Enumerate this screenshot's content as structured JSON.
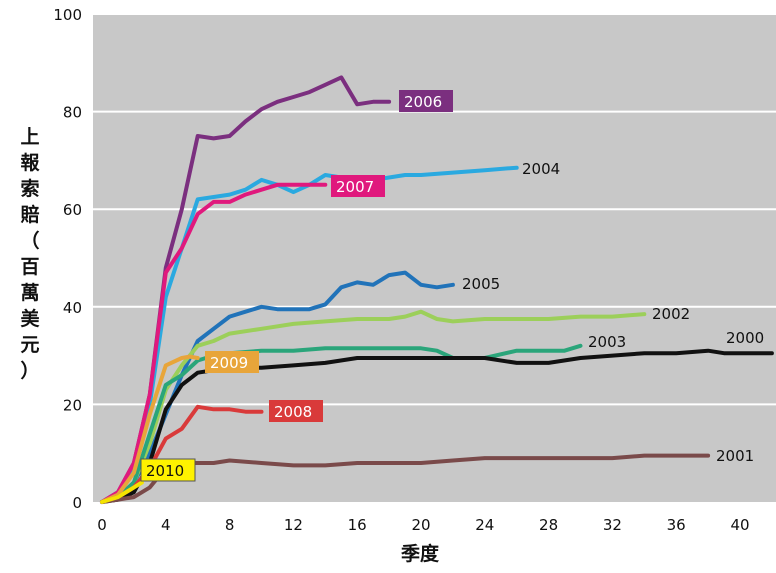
{
  "chart_data": {
    "type": "line",
    "xlabel": "季度",
    "ylabel": "上報索賠（百萬美元）",
    "xlim": [
      0,
      42
    ],
    "ylim": [
      0,
      100
    ],
    "x_ticks": [
      "0",
      "4",
      "8",
      "12",
      "16",
      "20",
      "24",
      "28",
      "32",
      "36",
      "40"
    ],
    "y_ticks": [
      "0",
      "20",
      "40",
      "60",
      "80",
      "100"
    ],
    "grid": "horizontal",
    "colors": {
      "plot_bg": "#c8c8c8",
      "grid": "#ffffff"
    },
    "series": [
      {
        "name": "2006",
        "color": "#7b2f7f",
        "label_style": "box",
        "points": [
          [
            0,
            0
          ],
          [
            1,
            2
          ],
          [
            2,
            8
          ],
          [
            3,
            22
          ],
          [
            4,
            48
          ],
          [
            5,
            60
          ],
          [
            6,
            75
          ],
          [
            7,
            74.5
          ],
          [
            8,
            75
          ],
          [
            9,
            78
          ],
          [
            10,
            80.5
          ],
          [
            11,
            82
          ],
          [
            12,
            83
          ],
          [
            13,
            84
          ],
          [
            14,
            85.5
          ],
          [
            15,
            87
          ],
          [
            16,
            81.5
          ],
          [
            17,
            82
          ],
          [
            18,
            82
          ]
        ]
      },
      {
        "name": "2004",
        "color": "#2aa9e0",
        "label_style": "plain",
        "points": [
          [
            0,
            0
          ],
          [
            1,
            2
          ],
          [
            2,
            7
          ],
          [
            3,
            20
          ],
          [
            4,
            42
          ],
          [
            5,
            52
          ],
          [
            6,
            62
          ],
          [
            7,
            62.5
          ],
          [
            8,
            63
          ],
          [
            9,
            64
          ],
          [
            10,
            66
          ],
          [
            11,
            65
          ],
          [
            12,
            63.5
          ],
          [
            13,
            65
          ],
          [
            14,
            67
          ],
          [
            15,
            66.5
          ],
          [
            16,
            66
          ],
          [
            17,
            66
          ],
          [
            18,
            66.5
          ],
          [
            19,
            67
          ],
          [
            20,
            67
          ],
          [
            22,
            67.5
          ],
          [
            24,
            68
          ],
          [
            26,
            68.5
          ]
        ]
      },
      {
        "name": "2007",
        "color": "#e0197d",
        "label_style": "box",
        "points": [
          [
            0,
            0
          ],
          [
            1,
            2
          ],
          [
            2,
            8
          ],
          [
            3,
            22
          ],
          [
            4,
            47
          ],
          [
            5,
            52
          ],
          [
            6,
            59
          ],
          [
            7,
            61.5
          ],
          [
            8,
            61.5
          ],
          [
            9,
            63
          ],
          [
            10,
            64
          ],
          [
            11,
            65
          ],
          [
            12,
            65
          ],
          [
            13,
            65
          ],
          [
            14,
            65
          ]
        ]
      },
      {
        "name": "2005",
        "color": "#2173b9",
        "label_style": "plain",
        "points": [
          [
            0,
            0
          ],
          [
            1,
            1
          ],
          [
            2,
            4
          ],
          [
            3,
            10
          ],
          [
            4,
            18
          ],
          [
            5,
            26
          ],
          [
            6,
            33
          ],
          [
            7,
            35.5
          ],
          [
            8,
            38
          ],
          [
            9,
            39
          ],
          [
            10,
            40
          ],
          [
            11,
            39.5
          ],
          [
            12,
            39.5
          ],
          [
            13,
            39.5
          ],
          [
            14,
            40.5
          ],
          [
            15,
            44
          ],
          [
            16,
            45
          ],
          [
            17,
            44.5
          ],
          [
            18,
            46.5
          ],
          [
            19,
            47
          ],
          [
            20,
            44.5
          ],
          [
            21,
            44
          ],
          [
            22,
            44.5
          ]
        ]
      },
      {
        "name": "2002",
        "color": "#9ccf5a",
        "label_style": "plain",
        "points": [
          [
            0,
            0
          ],
          [
            1,
            1
          ],
          [
            2,
            4
          ],
          [
            3,
            12
          ],
          [
            4,
            23
          ],
          [
            5,
            28
          ],
          [
            6,
            32
          ],
          [
            7,
            33
          ],
          [
            8,
            34.5
          ],
          [
            10,
            35.5
          ],
          [
            12,
            36.5
          ],
          [
            14,
            37
          ],
          [
            16,
            37.5
          ],
          [
            18,
            37.5
          ],
          [
            19,
            38
          ],
          [
            20,
            39
          ],
          [
            21,
            37.5
          ],
          [
            22,
            37
          ],
          [
            24,
            37.5
          ],
          [
            26,
            37.5
          ],
          [
            28,
            37.5
          ],
          [
            30,
            38
          ],
          [
            32,
            38
          ],
          [
            34,
            38.5
          ]
        ]
      },
      {
        "name": "2003",
        "color": "#2aa57a",
        "label_style": "plain",
        "points": [
          [
            0,
            0
          ],
          [
            1,
            1
          ],
          [
            2,
            4
          ],
          [
            3,
            14
          ],
          [
            4,
            24
          ],
          [
            5,
            26
          ],
          [
            6,
            29
          ],
          [
            7,
            30
          ],
          [
            8,
            30.5
          ],
          [
            10,
            31
          ],
          [
            12,
            31
          ],
          [
            14,
            31.5
          ],
          [
            16,
            31.5
          ],
          [
            18,
            31.5
          ],
          [
            20,
            31.5
          ],
          [
            21,
            31
          ],
          [
            22,
            29.5
          ],
          [
            24,
            29.5
          ],
          [
            26,
            31
          ],
          [
            28,
            31
          ],
          [
            29,
            31
          ],
          [
            30,
            32
          ]
        ]
      },
      {
        "name": "2000",
        "color": "#111111",
        "label_style": "plain",
        "points": [
          [
            0,
            0
          ],
          [
            1,
            0.5
          ],
          [
            2,
            2
          ],
          [
            3,
            8
          ],
          [
            4,
            19
          ],
          [
            5,
            24
          ],
          [
            6,
            26.5
          ],
          [
            7,
            27
          ],
          [
            8,
            27.5
          ],
          [
            10,
            27.5
          ],
          [
            12,
            28
          ],
          [
            14,
            28.5
          ],
          [
            16,
            29.5
          ],
          [
            18,
            29.5
          ],
          [
            20,
            29.5
          ],
          [
            22,
            29.5
          ],
          [
            24,
            29.5
          ],
          [
            26,
            28.5
          ],
          [
            28,
            28.5
          ],
          [
            30,
            29.5
          ],
          [
            32,
            30
          ],
          [
            34,
            30.5
          ],
          [
            36,
            30.5
          ],
          [
            38,
            31
          ],
          [
            39,
            30.5
          ],
          [
            40,
            30.5
          ],
          [
            42,
            30.5
          ]
        ]
      },
      {
        "name": "2009",
        "color": "#e8a53a",
        "label_style": "box",
        "points": [
          [
            0,
            0
          ],
          [
            1,
            1.5
          ],
          [
            2,
            6
          ],
          [
            3,
            18
          ],
          [
            4,
            28
          ],
          [
            5,
            29.5
          ],
          [
            5.5,
            29.8
          ],
          [
            6,
            29.5
          ]
        ]
      },
      {
        "name": "2008",
        "color": "#d93a3a",
        "label_style": "box",
        "points": [
          [
            0,
            0
          ],
          [
            1,
            1
          ],
          [
            2,
            3
          ],
          [
            3,
            7
          ],
          [
            4,
            13
          ],
          [
            5,
            15
          ],
          [
            6,
            19.5
          ],
          [
            7,
            19
          ],
          [
            8,
            19
          ],
          [
            9,
            18.5
          ],
          [
            10,
            18.5
          ]
        ]
      },
      {
        "name": "2001",
        "color": "#7a4a4a",
        "label_style": "plain",
        "points": [
          [
            0,
            0
          ],
          [
            1,
            0.5
          ],
          [
            2,
            1
          ],
          [
            3,
            3
          ],
          [
            4,
            7
          ],
          [
            5,
            8
          ],
          [
            6,
            8
          ],
          [
            7,
            8
          ],
          [
            8,
            8.5
          ],
          [
            10,
            8
          ],
          [
            12,
            7.5
          ],
          [
            14,
            7.5
          ],
          [
            16,
            8
          ],
          [
            18,
            8
          ],
          [
            20,
            8
          ],
          [
            22,
            8.5
          ],
          [
            24,
            9
          ],
          [
            26,
            9
          ],
          [
            28,
            9
          ],
          [
            30,
            9
          ],
          [
            32,
            9
          ],
          [
            34,
            9.5
          ],
          [
            36,
            9.5
          ],
          [
            38,
            9.5
          ]
        ]
      },
      {
        "name": "2010",
        "color": "#f4e300",
        "label_style": "box-yellow",
        "points": [
          [
            0,
            0
          ],
          [
            1,
            1
          ],
          [
            2,
            3
          ],
          [
            2.5,
            4
          ]
        ]
      }
    ]
  }
}
